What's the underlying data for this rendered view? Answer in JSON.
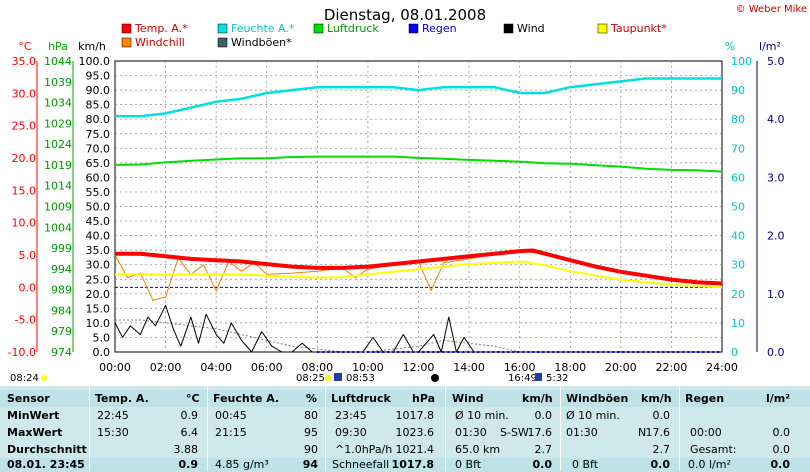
{
  "chart_data": {
    "type": "line",
    "title": "Dienstag, 08.01.2008",
    "credit": "© Weber Mike",
    "x_ticks": [
      "00:00",
      "02:00",
      "04:00",
      "06:00",
      "08:00",
      "10:00",
      "12:00",
      "14:00",
      "16:00",
      "18:00",
      "20:00",
      "22:00",
      "24:00"
    ],
    "x_range": [
      0,
      24
    ],
    "axes": {
      "temp": {
        "label": "°C",
        "range": [
          -10,
          35
        ],
        "ticks": [
          "35.0",
          "30.0",
          "25.0",
          "20.0",
          "15.0",
          "10.0",
          "5.0",
          "0.0",
          "-5.0",
          "-10.0"
        ],
        "color": "#ff0000"
      },
      "pressure": {
        "label": "hPa",
        "range": [
          974,
          1044
        ],
        "ticks": [
          "1044",
          "1039",
          "1034",
          "1029",
          "1024",
          "1019",
          "1014",
          "1009",
          "1004",
          "999",
          "994",
          "989",
          "984",
          "979",
          "974"
        ],
        "color": "#00aa00"
      },
      "wind": {
        "label": "km/h",
        "range": [
          0,
          100
        ],
        "ticks": [
          "100.0",
          "95.0",
          "90.0",
          "85.0",
          "80.0",
          "75.0",
          "70.0",
          "65.0",
          "60.0",
          "55.0",
          "50.0",
          "45.0",
          "40.0",
          "35.0",
          "30.0",
          "25.0",
          "20.0",
          "15.0",
          "10.0",
          "5.0",
          "0.0"
        ],
        "color": "#000000"
      },
      "humidity": {
        "label": "%",
        "range": [
          0,
          100
        ],
        "ticks": [
          "100",
          "90",
          "80",
          "70",
          "60",
          "50",
          "40",
          "30",
          "20",
          "10",
          "0"
        ],
        "color": "#00e0e0"
      },
      "rain": {
        "label": "l/m²",
        "range": [
          0,
          5
        ],
        "ticks": [
          "5.0",
          "4.0",
          "3.0",
          "2.0",
          "1.0",
          "0.0"
        ],
        "color": "#000080"
      }
    },
    "legend": [
      {
        "name": "Temp. A.*",
        "color": "#ff0000"
      },
      {
        "name": "Feuchte A.*",
        "color": "#00e0e0"
      },
      {
        "name": "Luftdruck",
        "color": "#00dd00"
      },
      {
        "name": "Regen",
        "color": "#0000ff"
      },
      {
        "name": "Wind",
        "color": "#000000"
      },
      {
        "name": "Taupunkt*",
        "color": "#ffff00"
      },
      {
        "name": "Windchill",
        "color": "#ff8000"
      },
      {
        "name": "Windböen*",
        "color": "#406060"
      }
    ],
    "series": [
      {
        "name": "Feuchte A.*",
        "axis": "humidity",
        "color": "#00e0e0",
        "x": [
          0,
          1,
          2,
          3,
          4,
          5,
          6,
          7,
          8,
          9,
          10,
          11,
          12,
          13,
          14,
          15,
          16,
          17,
          18,
          19,
          20,
          21,
          22,
          23,
          24
        ],
        "y": [
          81,
          81,
          82,
          84,
          86,
          87,
          89,
          90,
          91,
          91,
          91,
          91,
          90,
          91,
          91,
          91,
          89,
          89,
          91,
          92,
          93,
          94,
          94,
          94,
          94
        ]
      },
      {
        "name": "Luftdruck",
        "axis": "pressure",
        "color": "#00dd00",
        "x": [
          0,
          1,
          2,
          3,
          4,
          5,
          6,
          7,
          8,
          9,
          10,
          11,
          12,
          13,
          14,
          15,
          16,
          17,
          18,
          19,
          20,
          21,
          22,
          23,
          24
        ],
        "y": [
          1019.0,
          1019.1,
          1019.6,
          1020.0,
          1020.3,
          1020.6,
          1020.6,
          1020.9,
          1021.0,
          1021.0,
          1021.0,
          1021.0,
          1020.7,
          1020.5,
          1020.2,
          1020.0,
          1019.8,
          1019.4,
          1019.3,
          1018.9,
          1018.6,
          1018.1,
          1017.8,
          1017.7,
          1017.4
        ]
      },
      {
        "name": "Temp. A.*",
        "axis": "temp",
        "color": "#ff0000",
        "x": [
          0,
          1,
          2,
          3,
          4,
          5,
          6,
          7,
          8,
          9,
          10,
          11,
          12,
          13,
          14,
          15,
          16,
          16.5,
          17,
          18,
          19,
          20,
          21,
          22,
          23,
          24
        ],
        "y": [
          5.2,
          5.2,
          4.8,
          4.4,
          4.2,
          4.0,
          3.6,
          3.2,
          3.0,
          3.0,
          3.2,
          3.6,
          4.0,
          4.4,
          4.8,
          5.2,
          5.6,
          5.7,
          5.2,
          4.2,
          3.2,
          2.4,
          1.8,
          1.2,
          0.8,
          0.6
        ]
      },
      {
        "name": "Taupunkt*",
        "axis": "temp",
        "color": "#ffff00",
        "x": [
          0,
          1,
          2,
          3,
          4,
          5,
          6,
          7,
          8,
          9,
          10,
          11,
          12,
          13,
          14,
          15,
          16,
          17,
          18,
          19,
          20,
          21,
          22,
          23,
          24
        ],
        "y": [
          2.0,
          2.0,
          2.0,
          2.0,
          2.0,
          2.0,
          1.8,
          1.6,
          1.5,
          1.6,
          2.0,
          2.4,
          2.8,
          3.2,
          3.6,
          3.8,
          4.0,
          3.4,
          2.5,
          1.8,
          1.2,
          0.8,
          0.4,
          0.2,
          0.0
        ]
      },
      {
        "name": "Windchill",
        "axis": "temp",
        "color": "#ff8000",
        "x": [
          0,
          0.5,
          1,
          1.5,
          2,
          2.5,
          3,
          3.5,
          4,
          4.5,
          5,
          5.5,
          6,
          7,
          8,
          9,
          9.5,
          10,
          11,
          12,
          12.5,
          13,
          14,
          15,
          16,
          17,
          18,
          19,
          20,
          21,
          22,
          23,
          24
        ],
        "y": [
          5.0,
          1.5,
          2.2,
          -2.0,
          -1.5,
          4.5,
          2.0,
          3.5,
          -0.5,
          4.0,
          2.5,
          3.8,
          2.0,
          2.2,
          2.5,
          3.0,
          1.5,
          2.8,
          3.5,
          4.0,
          -0.5,
          3.8,
          4.4,
          5.2,
          5.6,
          5.2,
          4.2,
          3.2,
          2.4,
          1.8,
          1.2,
          0.8,
          0.6
        ]
      },
      {
        "name": "Wind",
        "axis": "wind",
        "color": "#000000",
        "x": [
          0,
          0.3,
          0.6,
          1,
          1.3,
          1.6,
          2,
          2.3,
          2.6,
          3,
          3.3,
          3.6,
          4,
          4.3,
          4.6,
          5,
          5.4,
          5.8,
          6.2,
          6.6,
          7,
          7.4,
          7.8,
          8.2,
          8.6,
          9,
          9.4,
          9.8,
          10.2,
          10.6,
          11,
          11.4,
          11.8,
          12,
          12.3,
          12.6,
          12.9,
          13.2,
          13.5,
          13.8,
          14.2,
          14.6,
          15,
          15.4,
          15.8,
          16.2,
          16.6,
          17,
          24
        ],
        "y": [
          10,
          5,
          9,
          6,
          12,
          9,
          16,
          8,
          2,
          12,
          3,
          13,
          6,
          3,
          10,
          4,
          0,
          7,
          2,
          0,
          0,
          3,
          0,
          0,
          0,
          0,
          0,
          0,
          5,
          0,
          0,
          6,
          0,
          0,
          3,
          6,
          0,
          12,
          0,
          5,
          0,
          0,
          0,
          0,
          0,
          0,
          0,
          0,
          0
        ]
      },
      {
        "name": "Windböen*",
        "axis": "wind",
        "color": "#808080",
        "x": [
          0,
          1,
          2,
          3,
          4,
          5,
          6,
          7,
          8,
          9,
          10,
          11,
          12,
          13,
          14,
          15,
          16,
          17,
          24
        ],
        "y": [
          11,
          11,
          10,
          9,
          8,
          6,
          4,
          2,
          1,
          0,
          0,
          1,
          2,
          4,
          3,
          2,
          0,
          0,
          0
        ]
      },
      {
        "name": "Regen",
        "axis": "rain",
        "color": "#0000ff",
        "x": [
          8,
          24
        ],
        "y": [
          0,
          0
        ]
      }
    ],
    "bottom_markers": [
      {
        "text": "08:24"
      },
      {
        "text": "08:25"
      },
      {
        "text": "08:53"
      },
      {
        "text": "16:49"
      },
      {
        "text": "5:32"
      }
    ]
  },
  "stats": {
    "headers": [
      "Sensor",
      "Temp. A.",
      "°C",
      "Feuchte A.",
      "%",
      "Luftdruck",
      "hPa",
      "Wind",
      "km/h",
      "Windböen",
      "km/h",
      "Regen",
      "l/m²"
    ],
    "rows": [
      {
        "label": "MinWert",
        "temp_time": "22:45",
        "temp": "0.9",
        "hum_time": "00:45",
        "hum": "80",
        "press_time": "23:45",
        "press": "1017.8",
        "wind_lbl": "Ø 10 min.",
        "wind": "0.0",
        "gust_lbl": "Ø 10 min.",
        "gust": "0.0",
        "rain_lbl": "",
        "rain": ""
      },
      {
        "label": "MaxWert",
        "temp_time": "15:30",
        "temp": "6.4",
        "hum_time": "21:15",
        "hum": "95",
        "press_time": "09:30",
        "press": "1023.6",
        "wind_lbl": "01:30",
        "wind_dir": "S-SW",
        "wind": "17.6",
        "gust_lbl": "01:30",
        "gust_dir": "N",
        "gust": "17.6",
        "rain_lbl": "00:00",
        "rain": "0.0"
      },
      {
        "label": "Durchschnitt",
        "temp_time": "",
        "temp": "3.88",
        "hum_time": "",
        "hum": "90",
        "press_time": "^1.0hPa/h",
        "press": "1021.4",
        "wind_lbl": "65.0 km",
        "wind": "2.7",
        "gust_lbl": "",
        "gust": "2.7",
        "rain_lbl": "Gesamt:",
        "rain": "0.0"
      },
      {
        "label": "08.01. 23:45",
        "temp_time": "",
        "temp": "0.9",
        "hum_time": "4.85 g/m³",
        "hum": "94",
        "press_time": "Schneefall",
        "press": "1017.8",
        "wind_lbl": "0 Bft",
        "wind": "0.0",
        "gust_lbl": "0 Bft",
        "gust": "0.0",
        "rain_lbl": "0.0 l/m²",
        "rain": "0.0"
      }
    ]
  }
}
